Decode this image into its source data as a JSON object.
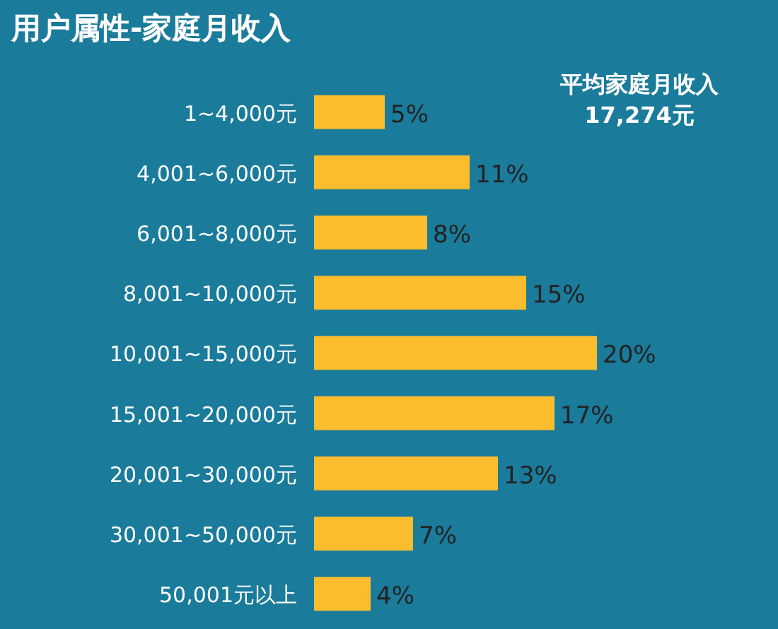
{
  "chart_data": {
    "type": "bar",
    "orientation": "horizontal",
    "title": "用户属性-家庭月收入",
    "categories": [
      "1~4,000元",
      "4,001~6,000元",
      "6,001~8,000元",
      "8,001~10,000元",
      "10,001~15,000元",
      "15,001~20,000元",
      "20,001~30,000元",
      "30,001~50,000元",
      "50,001元以上"
    ],
    "values": [
      5,
      11,
      8,
      15,
      20,
      17,
      13,
      7,
      4
    ],
    "value_labels": [
      "5%",
      "11%",
      "8%",
      "15%",
      "20%",
      "17%",
      "13%",
      "7%",
      "4%"
    ],
    "color": "#fbbc2e",
    "annotations": [
      "平均家庭月收入",
      "17,274元"
    ]
  }
}
